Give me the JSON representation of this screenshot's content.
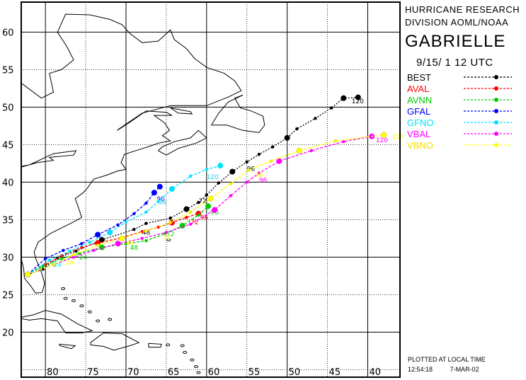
{
  "header": {
    "org_line1": "HURRICANE RESEARCH",
    "org_line2": "DIVISION AOML/NOAA",
    "storm_name": "GABRIELLE",
    "datetime": "9/15/ 1 12  UTC"
  },
  "footer": {
    "plotted_note": "PLOTTED AT LOCAL TIME",
    "time": "12:54:18",
    "date": "7-MAR-02"
  },
  "map": {
    "lon_range": [
      -83,
      -36
    ],
    "lat_range": [
      14,
      64
    ],
    "lon_ticks": [
      80,
      75,
      70,
      65,
      60,
      55,
      50,
      45,
      40
    ],
    "lat_ticks": [
      60,
      55,
      50,
      45,
      40,
      35,
      30,
      25,
      20
    ],
    "lon_tick_labels": [
      "80",
      "75",
      "70",
      "65",
      "60",
      "55",
      "50",
      "45",
      "40"
    ],
    "lat_tick_labels": [
      "60",
      "55",
      "50",
      "45",
      "40",
      "35",
      "30",
      "25",
      "20"
    ]
  },
  "legend": [
    {
      "name": "BEST",
      "color": "#000000"
    },
    {
      "name": "AVAL",
      "color": "#ff0000"
    },
    {
      "name": "AVNN",
      "color": "#00cc00"
    },
    {
      "name": "GFAL",
      "color": "#0000ff"
    },
    {
      "name": "GFNO",
      "color": "#00e0ff"
    },
    {
      "name": "VBAL",
      "color": "#ff00ff"
    },
    {
      "name": "VBNO",
      "color": "#ffff00"
    }
  ],
  "tracks": [
    {
      "name": "BEST",
      "color": "#000000",
      "points": [
        [
          -82.2,
          27.7
        ],
        [
          -80.3,
          28.4
        ],
        [
          -78.5,
          29.9
        ],
        [
          -76.2,
          30.8
        ],
        [
          -73.0,
          32.3
        ],
        [
          -69.0,
          33.7
        ],
        [
          -67.5,
          34.5
        ],
        [
          -64.5,
          35.2
        ],
        [
          -62.5,
          36.4
        ],
        [
          -61.0,
          37.3
        ],
        [
          -60.0,
          38.3
        ],
        [
          -58.5,
          39.9
        ],
        [
          -56.8,
          41.4
        ],
        [
          -55.0,
          42.7
        ],
        [
          -53.5,
          43.7
        ],
        [
          -51.8,
          44.7
        ],
        [
          -50.0,
          45.9
        ],
        [
          -48.8,
          47.1
        ],
        [
          -46.5,
          48.5
        ],
        [
          -44.5,
          49.9
        ],
        [
          -43.0,
          51.2
        ],
        [
          -41.2,
          51.3
        ]
      ],
      "labels": [
        {
          "text": "48",
          "lon": -68.0,
          "lat": 33.0
        },
        {
          "text": "72",
          "lon": -61.0,
          "lat": 37.2
        },
        {
          "text": "96",
          "lon": -55.0,
          "lat": 41.5
        },
        {
          "text": "120",
          "lon": -42.0,
          "lat": 50.5
        }
      ]
    },
    {
      "name": "AVAL",
      "color": "#ff0000",
      "points": [
        [
          -82.2,
          27.7
        ],
        [
          -80.0,
          29.0
        ],
        [
          -78.0,
          30.2
        ],
        [
          -75.5,
          31.3
        ],
        [
          -73.5,
          31.9
        ],
        [
          -70.5,
          32.6
        ],
        [
          -68.0,
          33.4
        ],
        [
          -66.0,
          34.0
        ],
        [
          -64.3,
          34.6
        ],
        [
          -62.5,
          35.3
        ],
        [
          -61.0,
          35.8
        ]
      ],
      "labels": [
        {
          "text": "96",
          "lon": -60.8,
          "lat": 35.0
        },
        {
          "text": "72",
          "lon": -62.0,
          "lat": 34.4
        }
      ]
    },
    {
      "name": "AVNN",
      "color": "#00cc00",
      "points": [
        [
          -82.2,
          27.7
        ],
        [
          -80.3,
          28.8
        ],
        [
          -78.0,
          29.8
        ],
        [
          -75.8,
          30.5
        ],
        [
          -73.0,
          31.3
        ],
        [
          -70.0,
          31.8
        ],
        [
          -67.5,
          32.2
        ],
        [
          -65.2,
          33.1
        ],
        [
          -63.0,
          34.2
        ],
        [
          -61.0,
          35.6
        ],
        [
          -59.8,
          36.8
        ]
      ],
      "labels": [
        {
          "text": "24",
          "lon": -75.8,
          "lat": 29.7
        },
        {
          "text": "48",
          "lon": -69.5,
          "lat": 31.0
        },
        {
          "text": "72",
          "lon": -65.0,
          "lat": 32.8
        },
        {
          "text": "96",
          "lon": -59.5,
          "lat": 35.7
        }
      ]
    },
    {
      "name": "GFAL",
      "color": "#0000ff",
      "points": [
        [
          -82.2,
          27.7
        ],
        [
          -80.0,
          29.8
        ],
        [
          -77.8,
          30.9
        ],
        [
          -75.5,
          31.8
        ],
        [
          -73.5,
          33.0
        ],
        [
          -71.0,
          34.3
        ],
        [
          -69.0,
          35.8
        ],
        [
          -67.5,
          37.2
        ],
        [
          -66.5,
          38.6
        ],
        [
          -65.8,
          39.4
        ]
      ],
      "labels": [
        {
          "text": "96",
          "lon": -66.2,
          "lat": 37.5
        }
      ]
    },
    {
      "name": "GFNO",
      "color": "#00e0ff",
      "points": [
        [
          -82.2,
          27.7
        ],
        [
          -79.5,
          29.6
        ],
        [
          -77.0,
          30.8
        ],
        [
          -74.5,
          32.0
        ],
        [
          -72.0,
          33.3
        ],
        [
          -70.0,
          34.7
        ],
        [
          -67.5,
          36.0
        ],
        [
          -66.0,
          37.4
        ],
        [
          -64.3,
          39.1
        ],
        [
          -62.0,
          40.8
        ],
        [
          -60.0,
          41.7
        ],
        [
          -58.3,
          42.2
        ]
      ],
      "labels": [
        {
          "text": "24",
          "lon": -79.0,
          "lat": 28.7
        },
        {
          "text": "120",
          "lon": -60.0,
          "lat": 40.4
        },
        {
          "text": "96",
          "lon": -66.0,
          "lat": 37.0
        }
      ]
    },
    {
      "name": "VBAL",
      "color": "#ff00ff",
      "points": [
        [
          -82.2,
          27.7
        ],
        [
          -79.0,
          29.0
        ],
        [
          -76.5,
          30.0
        ],
        [
          -74.0,
          30.9
        ],
        [
          -71.0,
          31.8
        ],
        [
          -68.0,
          32.5
        ],
        [
          -65.0,
          33.3
        ],
        [
          -62.0,
          34.4
        ],
        [
          -59.0,
          36.3
        ],
        [
          -57.0,
          38.2
        ],
        [
          -55.0,
          40.0
        ],
        [
          -53.5,
          41.2
        ],
        [
          -51.0,
          42.8
        ],
        [
          -47.0,
          44.2
        ],
        [
          -43.0,
          45.4
        ],
        [
          -39.5,
          46.1
        ]
      ],
      "labels": [
        {
          "text": "96",
          "lon": -53.5,
          "lat": 40.0
        },
        {
          "text": "120",
          "lon": -39.0,
          "lat": 45.3
        }
      ]
    },
    {
      "name": "VBNO",
      "color": "#ffff00",
      "points": [
        [
          -82.2,
          27.7
        ],
        [
          -79.0,
          29.0
        ],
        [
          -76.5,
          30.3
        ],
        [
          -73.5,
          31.6
        ],
        [
          -70.5,
          32.5
        ],
        [
          -67.5,
          33.5
        ],
        [
          -64.5,
          34.6
        ],
        [
          -62.0,
          36.0
        ],
        [
          -59.5,
          37.8
        ],
        [
          -57.0,
          39.8
        ],
        [
          -54.8,
          41.6
        ],
        [
          -52.0,
          42.8
        ],
        [
          -48.5,
          44.2
        ],
        [
          -44.0,
          45.5
        ],
        [
          -38.0,
          46.3
        ]
      ],
      "labels": [
        {
          "text": "24",
          "lon": -77.5,
          "lat": 29.0
        },
        {
          "text": "48",
          "lon": -70.0,
          "lat": 31.6
        },
        {
          "text": "72",
          "lon": -65.5,
          "lat": 32.4
        },
        {
          "text": "96",
          "lon": -54.0,
          "lat": 40.7
        },
        {
          "text": "120",
          "lon": -37.0,
          "lat": 45.8
        }
      ]
    }
  ]
}
